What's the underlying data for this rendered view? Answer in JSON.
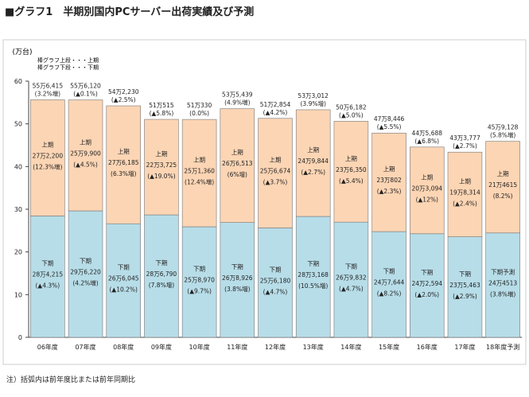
{
  "title": "■グラフ1　半期別国内PCサーバー出荷実績及び予測",
  "footnote": "注）括弧内は前年度比または前年同期比",
  "chart_data": {
    "type": "bar",
    "stacked": true,
    "unit_label": "(万台)",
    "legend_lines": [
      "棒グラフ上段・・・上期",
      "棒グラフ下段・・・下期"
    ],
    "ylim": [
      0,
      60
    ],
    "yticks": [
      0,
      10,
      20,
      30,
      40,
      50,
      60
    ],
    "grid": false,
    "categories": [
      "06年度",
      "07年度",
      "08年度",
      "09年度",
      "10年度",
      "11年度",
      "12年度",
      "13年度",
      "14年度",
      "15年度",
      "16年度",
      "17年度",
      "18年度予測"
    ],
    "colors": {
      "upper": "#fcd5b4",
      "lower": "#b7dde8"
    },
    "series": [
      {
        "name": "下期",
        "values": [
          28.4215,
          29.622,
          26.6045,
          28.679,
          25.897,
          26.8926,
          25.618,
          28.3168,
          26.9832,
          24.7644,
          24.2594,
          23.5463,
          24.4513
        ],
        "labels": [
          [
            "下期",
            "28万4,215",
            "(▲4.3%)"
          ],
          [
            "下期",
            "29万6,220",
            "(4.2%増)"
          ],
          [
            "下期",
            "26万6,045",
            "(▲10.2%)"
          ],
          [
            "下期",
            "28万6,790",
            "(7.8%増)"
          ],
          [
            "下期",
            "25万8,970",
            "(▲9.7%)"
          ],
          [
            "下期",
            "26万8,926",
            "(3.8%増)"
          ],
          [
            "下期",
            "25万6,180",
            "(▲4.7%)"
          ],
          [
            "下期",
            "28万3,168",
            "(10.5%増)"
          ],
          [
            "下期",
            "26万9,832",
            "(▲4.7%)"
          ],
          [
            "下期",
            "24万7,644",
            "(▲8.2%)"
          ],
          [
            "下期",
            "24万2,594",
            "(▲2.0%)"
          ],
          [
            "下期",
            "23万5,463",
            "(▲2.9%)"
          ],
          [
            "下期予測",
            "24万4513",
            "(3.8%増)"
          ]
        ]
      },
      {
        "name": "上期",
        "values": [
          27.22,
          25.99,
          27.6185,
          22.3725,
          25.136,
          26.6513,
          25.6674,
          24.9844,
          23.635,
          23.0802,
          20.3094,
          19.8314,
          21.4615
        ],
        "labels": [
          [
            "上期",
            "27万2,200",
            "(12.3%増)"
          ],
          [
            "上期",
            "25万9,900",
            "(▲4.5%)"
          ],
          [
            "上期",
            "27万6,185",
            "(6.3%増)"
          ],
          [
            "上期",
            "22万3,725",
            "(▲19.0%)"
          ],
          [
            "上期",
            "25万1,360",
            "(12.4%増)"
          ],
          [
            "上期",
            "26万6,513",
            "(6%増)"
          ],
          [
            "上期",
            "25万6,674",
            "(▲3.7%)"
          ],
          [
            "上期",
            "24万9,844",
            "(▲2.7%)"
          ],
          [
            "上期",
            "23万6,350",
            "(▲5.4%)"
          ],
          [
            "上期",
            "23万802",
            "(▲2.3%)"
          ],
          [
            "上期",
            "20万3,094",
            "(▲12%)"
          ],
          [
            "上期",
            "19万8,314",
            "(▲2.4%)"
          ],
          [
            "上期",
            "21万4615",
            "(8.2%)"
          ]
        ]
      }
    ],
    "totals": [
      55.6415,
      55.612,
      54.223,
      51.0515,
      51.033,
      53.5439,
      51.2854,
      53.3012,
      50.6182,
      47.8446,
      44.5688,
      43.3777,
      45.9128
    ],
    "total_labels": [
      [
        "55万6,415",
        "(3.2%増)"
      ],
      [
        "55万6,120",
        "(▲0.1%)"
      ],
      [
        "54万2,230",
        "(▲2.5%)"
      ],
      [
        "51万515",
        "(▲5.8%)"
      ],
      [
        "51万330",
        "(0.0%)"
      ],
      [
        "53万5,439",
        "(4.9%増)"
      ],
      [
        "51万2,854",
        "(▲4.2%)"
      ],
      [
        "53万3,012",
        "(3.9%増)"
      ],
      [
        "50万6,182",
        "(▲5.0%)"
      ],
      [
        "47万8,446",
        "(▲5.5%)"
      ],
      [
        "44万5,688",
        "(▲6.8%)"
      ],
      [
        "43万3,777",
        "(▲2.7%)"
      ],
      [
        "45万9,128",
        "(5.8%増)"
      ]
    ]
  }
}
